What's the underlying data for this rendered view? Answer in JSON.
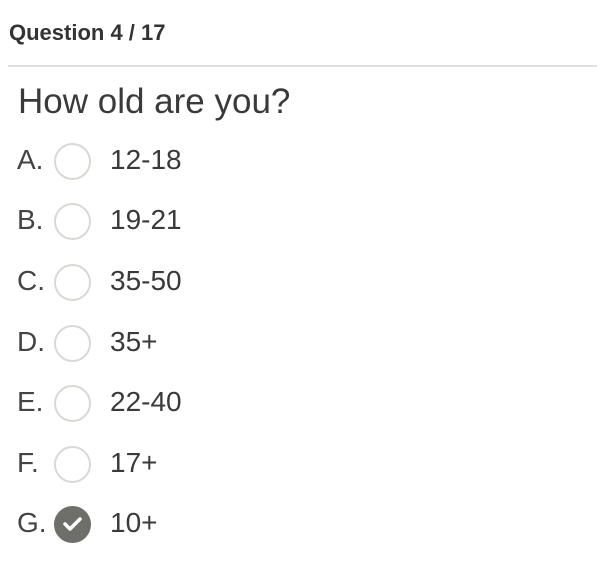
{
  "header": {
    "title": "Question 4 / 17"
  },
  "question": {
    "text": "How old are you?"
  },
  "options": [
    {
      "letter": "A.",
      "label": "12-18",
      "checked": false
    },
    {
      "letter": "B.",
      "label": "19-21",
      "checked": false
    },
    {
      "letter": "C.",
      "label": "35-50",
      "checked": false
    },
    {
      "letter": "D.",
      "label": "35+",
      "checked": false
    },
    {
      "letter": "E.",
      "label": "22-40",
      "checked": false
    },
    {
      "letter": "F.",
      "label": "17+",
      "checked": false
    },
    {
      "letter": "G.",
      "label": "10+",
      "checked": true
    }
  ],
  "colors": {
    "checked_fill": "#6e6e6a",
    "radio_border": "#d8d8d4"
  }
}
